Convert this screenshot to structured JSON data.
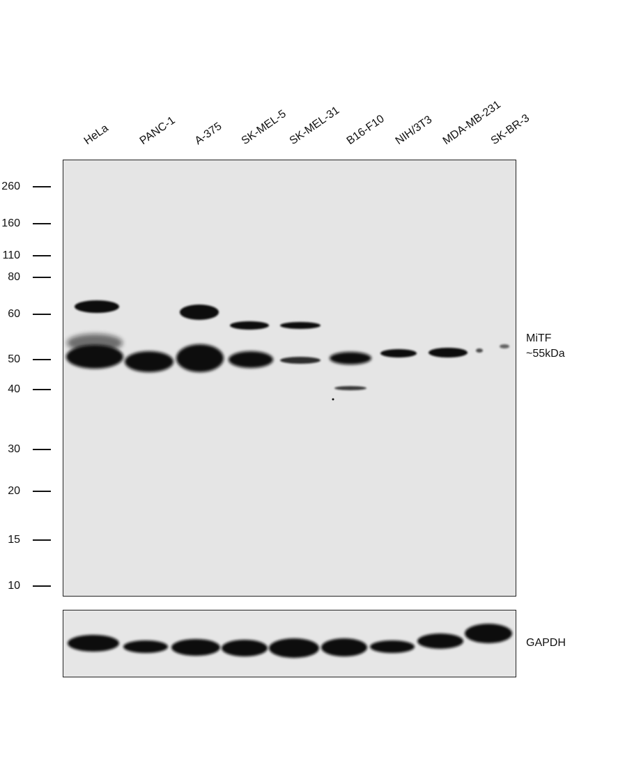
{
  "lanes": [
    "HeLa",
    "PANC-1",
    "A-375",
    "SK-MEL-5",
    "SK-MEL-31",
    "B16-F10",
    "NIH/3T3",
    "MDA-MB-231",
    "SK-BR-3"
  ],
  "mw_markers": [
    "260",
    "160",
    "110",
    "80",
    "60",
    "50",
    "40",
    "30",
    "20",
    "15",
    "10"
  ],
  "target": {
    "name": "MiTF",
    "size": "~55kDa"
  },
  "loading_control": "GAPDH",
  "colors": {
    "band": "#111111",
    "membrane": "#e5e5e5"
  }
}
